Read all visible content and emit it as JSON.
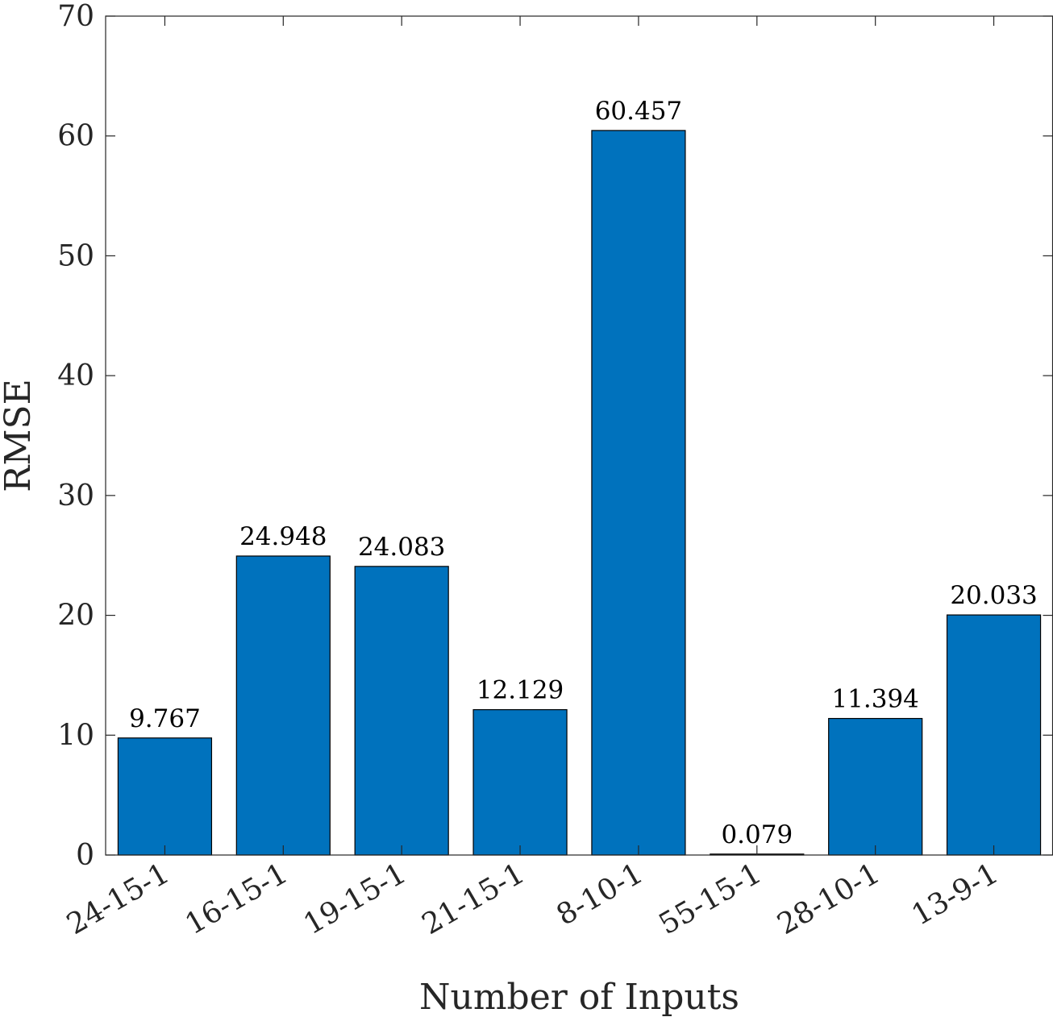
{
  "chart_data": {
    "type": "bar",
    "categories": [
      "24-15-1",
      "16-15-1",
      "19-15-1",
      "21-15-1",
      "8-10-1",
      "55-15-1",
      "28-10-1",
      "13-9-1"
    ],
    "values": [
      9.767,
      24.948,
      24.083,
      12.129,
      60.457,
      0.079,
      11.394,
      20.033
    ],
    "data_labels": [
      "9.767",
      "24.948",
      "24.083",
      "12.129",
      "60.457",
      "0.079",
      "11.394",
      "20.033"
    ],
    "xlabel": "Number of Inputs",
    "ylabel": "RMSE",
    "ylim": [
      0,
      70
    ],
    "yticks": [
      0,
      10,
      20,
      30,
      40,
      50,
      60,
      70
    ],
    "bar_color": "#0072BD",
    "grid": false,
    "legend": "none"
  }
}
